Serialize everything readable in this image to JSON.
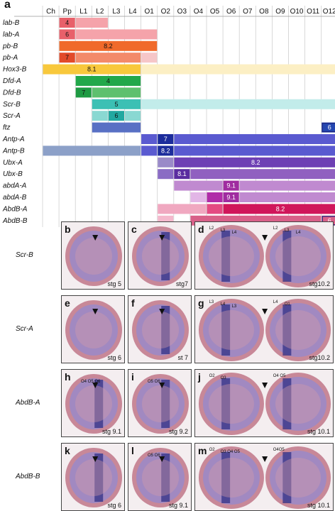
{
  "panel_a_letter": "a",
  "chart_data": {
    "type": "table",
    "columns": [
      "Ch",
      "Pp",
      "L1",
      "L2",
      "L3",
      "L4",
      "O1",
      "O2",
      "O3",
      "O4",
      "O5",
      "O6",
      "O7",
      "O8",
      "O9",
      "O10",
      "O11",
      "O12"
    ],
    "genes": [
      {
        "name": "lab-B",
        "segments": [
          {
            "from": 1,
            "to": 1,
            "color": "#e8606a",
            "label": "4"
          },
          {
            "from": 2,
            "to": 3,
            "color": "#f5a3aa"
          }
        ]
      },
      {
        "name": "lab-A",
        "segments": [
          {
            "from": 1,
            "to": 1,
            "color": "#e8606a",
            "label": "6"
          },
          {
            "from": 2,
            "to": 6,
            "color": "#f5a3aa"
          }
        ]
      },
      {
        "name": "pb-B",
        "segments": [
          {
            "from": 1,
            "to": 6,
            "color": "#f06a2a",
            "label": "8.2"
          }
        ]
      },
      {
        "name": "pb-A",
        "segments": [
          {
            "from": 1,
            "to": 1,
            "color": "#e24a2a",
            "label": "7"
          },
          {
            "from": 2,
            "to": 5,
            "color": "#f38a6a"
          },
          {
            "from": 6,
            "to": 6,
            "color": "#f6c6c8"
          }
        ]
      },
      {
        "name": "Hox3-B",
        "segments": [
          {
            "from": 0,
            "to": 5,
            "color": "#f8c83c",
            "label": "8.1"
          },
          {
            "from": 6,
            "to": 17,
            "color": "#fcefc4"
          }
        ]
      },
      {
        "name": "Dfd-A",
        "segments": [
          {
            "from": 2,
            "to": 5,
            "color": "#22a84a",
            "label": "4"
          }
        ]
      },
      {
        "name": "Dfd-B",
        "segments": [
          {
            "from": 2,
            "to": 2,
            "color": "#1e9a42",
            "label": "7"
          },
          {
            "from": 3,
            "to": 5,
            "color": "#5ec06e"
          }
        ]
      },
      {
        "name": "Scr-B",
        "segments": [
          {
            "from": 3,
            "to": 5,
            "color": "#3cc0b4",
            "label": "5"
          },
          {
            "from": 6,
            "to": 17,
            "color": "#c2ecea"
          }
        ]
      },
      {
        "name": "Scr-A",
        "segments": [
          {
            "from": 3,
            "to": 3,
            "color": "#8ad8d2"
          },
          {
            "from": 4,
            "to": 4,
            "color": "#22a8a0",
            "label": "6"
          },
          {
            "from": 5,
            "to": 5,
            "color": "#8ad8d2"
          }
        ]
      },
      {
        "name": "ftz",
        "segments": [
          {
            "from": 3,
            "to": 5,
            "color": "#5870c4"
          },
          {
            "from": 17,
            "to": 17,
            "color": "#2446b0",
            "label": "6",
            "boxed": true
          }
        ]
      },
      {
        "name": "Antp-A",
        "segments": [
          {
            "from": 6,
            "to": 6,
            "color": "#5a5ad0"
          },
          {
            "from": 7,
            "to": 7,
            "color": "#1c2c9c",
            "label": "7"
          },
          {
            "from": 8,
            "to": 17,
            "color": "#5a5ad0"
          }
        ]
      },
      {
        "name": "Antp-B",
        "segments": [
          {
            "from": 0,
            "to": 5,
            "color": "#8ca0c8"
          },
          {
            "from": 6,
            "to": 6,
            "color": "#5a5ad0"
          },
          {
            "from": 7,
            "to": 7,
            "color": "#1c2c9c",
            "label": "8.2"
          },
          {
            "from": 8,
            "to": 17,
            "color": "#5a5ad0"
          }
        ]
      },
      {
        "name": "Ubx-A",
        "segments": [
          {
            "from": 7,
            "to": 7,
            "color": "#9a8ac8"
          },
          {
            "from": 8,
            "to": 17,
            "color": "#6e40b4",
            "label": "8.2"
          }
        ]
      },
      {
        "name": "Ubx-B",
        "segments": [
          {
            "from": 7,
            "to": 7,
            "color": "#8a6cc4"
          },
          {
            "from": 8,
            "to": 8,
            "color": "#5a2ca0",
            "label": "8.1"
          },
          {
            "from": 9,
            "to": 17,
            "color": "#9060c0"
          }
        ]
      },
      {
        "name": "abdA-A",
        "segments": [
          {
            "from": 8,
            "to": 10,
            "color": "#c08ad0"
          },
          {
            "from": 11,
            "to": 11,
            "color": "#a02ca0",
            "label": "9.1"
          },
          {
            "from": 12,
            "to": 17,
            "color": "#c08ad0"
          }
        ]
      },
      {
        "name": "abdA-B",
        "segments": [
          {
            "from": 9,
            "to": 9,
            "color": "#e2b6e6"
          },
          {
            "from": 10,
            "to": 10,
            "color": "#b02ca8"
          },
          {
            "from": 11,
            "to": 11,
            "color": "#a02ca0",
            "label": "9.1"
          },
          {
            "from": 12,
            "to": 17,
            "color": "#c08ad0"
          }
        ]
      },
      {
        "name": "AbdB-A",
        "segments": [
          {
            "from": 7,
            "to": 9,
            "color": "#f0a8c0"
          },
          {
            "from": 10,
            "to": 10,
            "color": "#e44a82"
          },
          {
            "from": 11,
            "to": 17,
            "color": "#d0165a",
            "label": "8.2"
          }
        ]
      },
      {
        "name": "AbdB-B",
        "segments": [
          {
            "from": 7,
            "to": 7,
            "color": "#f4b8cc"
          },
          {
            "from": 9,
            "to": 16,
            "color": "#d86088"
          },
          {
            "from": 17,
            "to": 17,
            "color": "#d86088",
            "label": "6",
            "boxed": true
          }
        ]
      }
    ]
  },
  "figure_rows": [
    {
      "gene": "Scr-B",
      "panels": [
        {
          "letter": "b",
          "stage": "stg 5",
          "type": "single"
        },
        {
          "letter": "c",
          "stage": "stg7",
          "type": "single"
        },
        {
          "letter": "d",
          "stage": "stg10.2",
          "type": "double",
          "labels": [
            "L2",
            "L3",
            "L4",
            "L2",
            "L3",
            "L4"
          ]
        }
      ]
    },
    {
      "gene": "Scr-A",
      "panels": [
        {
          "letter": "e",
          "stage": "stg 6",
          "type": "single"
        },
        {
          "letter": "f",
          "stage": "st 7",
          "type": "single"
        },
        {
          "letter": "g",
          "stage": "stg10.2",
          "type": "double",
          "labels": [
            "L3",
            "L4",
            "L3",
            "L4",
            "O1"
          ]
        }
      ]
    },
    {
      "gene": "AbdB-A",
      "panels": [
        {
          "letter": "h",
          "stage": "stg 9.1",
          "type": "single",
          "labels": [
            "O4 O5 O6"
          ]
        },
        {
          "letter": "i",
          "stage": "stg 9.2",
          "type": "single",
          "labels": [
            "O5 O6"
          ]
        },
        {
          "letter": "j",
          "stage": "stg 10.1",
          "type": "double",
          "labels": [
            "O2",
            "O3",
            "O4 O5"
          ]
        }
      ]
    },
    {
      "gene": "AbdB-B",
      "panels": [
        {
          "letter": "k",
          "stage": "stg 6",
          "type": "single"
        },
        {
          "letter": "l",
          "stage": "stg 9.1",
          "type": "single",
          "labels": [
            "O5 O6"
          ]
        },
        {
          "letter": "m",
          "stage": "stg 10.1",
          "type": "double",
          "labels": [
            "O2",
            "O3 O4 O5",
            "O4O5"
          ]
        }
      ]
    }
  ]
}
